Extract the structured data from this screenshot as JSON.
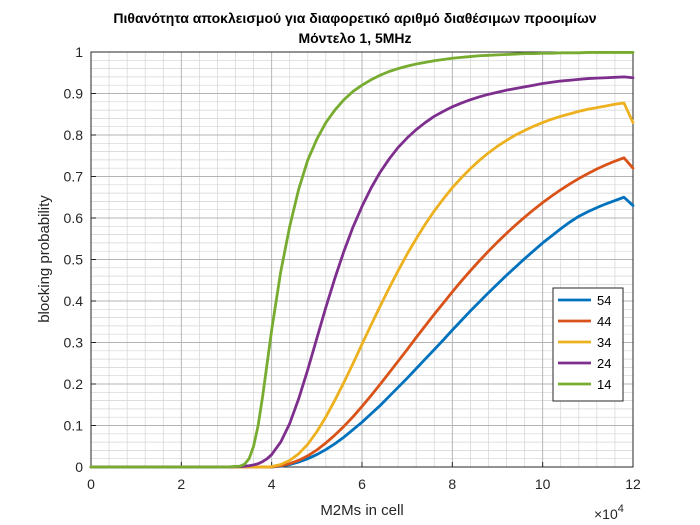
{
  "chart_data": {
    "type": "line",
    "title": "Πιθανότητα αποκλεισμού για διαφορετικό αριθμό διαθέσιμων προοιμίων",
    "subtitle": "Μόντελο 1, 5MHz",
    "xlabel": "M2Ms in cell",
    "ylabel": "blocking probability",
    "x_multiplier_label": "×10",
    "x_multiplier_exponent": "4",
    "xlim": [
      0,
      120000
    ],
    "ylim": [
      0,
      1
    ],
    "xticks": [
      0,
      20000,
      40000,
      60000,
      80000,
      100000,
      120000
    ],
    "xtick_labels": [
      "0",
      "2",
      "4",
      "6",
      "8",
      "10",
      "12"
    ],
    "yticks": [
      0,
      0.1,
      0.2,
      0.3,
      0.4,
      0.5,
      0.6,
      0.7,
      0.8,
      0.9,
      1
    ],
    "ytick_labels": [
      "0",
      "0.1",
      "0.2",
      "0.3",
      "0.4",
      "0.5",
      "0.6",
      "0.7",
      "0.8",
      "0.9",
      "1"
    ],
    "grid": true,
    "minor_grid": true,
    "legend_position": "bottom-right",
    "x": [
      0,
      30000,
      33000,
      34000,
      35000,
      36000,
      37000,
      38000,
      39000,
      40000,
      42000,
      44000,
      46000,
      48000,
      50000,
      52000,
      54000,
      56000,
      58000,
      60000,
      62000,
      64000,
      66000,
      68000,
      70000,
      72000,
      74000,
      76000,
      78000,
      80000,
      82000,
      84000,
      86000,
      88000,
      90000,
      92000,
      94000,
      96000,
      98000,
      100000,
      102000,
      104000,
      106000,
      108000,
      110000,
      112000,
      114000,
      116000,
      118000,
      120000
    ],
    "series": [
      {
        "name": "54",
        "color": "#0072BD",
        "values": [
          0,
          0,
          0,
          0,
          0,
          0,
          0,
          0,
          0,
          0,
          0.002,
          0.006,
          0.012,
          0.02,
          0.03,
          0.042,
          0.056,
          0.072,
          0.09,
          0.108,
          0.128,
          0.148,
          0.17,
          0.192,
          0.214,
          0.237,
          0.26,
          0.283,
          0.306,
          0.33,
          0.353,
          0.376,
          0.398,
          0.42,
          0.441,
          0.462,
          0.482,
          0.502,
          0.521,
          0.54,
          0.557,
          0.574,
          0.59,
          0.604,
          0.615,
          0.625,
          0.634,
          0.642,
          0.65,
          0.63
        ]
      },
      {
        "name": "44",
        "color": "#D95319",
        "values": [
          0,
          0,
          0,
          0,
          0,
          0,
          0,
          0,
          0,
          0,
          0.003,
          0.008,
          0.016,
          0.027,
          0.041,
          0.058,
          0.077,
          0.098,
          0.121,
          0.146,
          0.172,
          0.199,
          0.227,
          0.255,
          0.283,
          0.312,
          0.34,
          0.368,
          0.395,
          0.422,
          0.448,
          0.473,
          0.497,
          0.52,
          0.542,
          0.563,
          0.583,
          0.602,
          0.62,
          0.637,
          0.653,
          0.668,
          0.682,
          0.695,
          0.707,
          0.718,
          0.728,
          0.737,
          0.745,
          0.72
        ]
      },
      {
        "name": "34",
        "color": "#EDB120",
        "values": [
          0,
          0,
          0,
          0,
          0,
          0,
          0,
          0,
          0,
          0.001,
          0.006,
          0.016,
          0.032,
          0.055,
          0.085,
          0.121,
          0.161,
          0.204,
          0.249,
          0.296,
          0.342,
          0.387,
          0.431,
          0.473,
          0.513,
          0.55,
          0.585,
          0.617,
          0.646,
          0.673,
          0.697,
          0.719,
          0.739,
          0.757,
          0.773,
          0.787,
          0.8,
          0.811,
          0.821,
          0.83,
          0.838,
          0.845,
          0.851,
          0.857,
          0.862,
          0.866,
          0.87,
          0.874,
          0.877,
          0.83
        ]
      },
      {
        "name": "24",
        "color": "#7E2F8E",
        "values": [
          0,
          0,
          0.001,
          0.002,
          0.003,
          0.005,
          0.008,
          0.013,
          0.02,
          0.03,
          0.06,
          0.105,
          0.165,
          0.235,
          0.31,
          0.385,
          0.455,
          0.52,
          0.578,
          0.628,
          0.672,
          0.71,
          0.742,
          0.77,
          0.793,
          0.813,
          0.83,
          0.845,
          0.857,
          0.868,
          0.877,
          0.885,
          0.892,
          0.898,
          0.903,
          0.908,
          0.912,
          0.916,
          0.92,
          0.924,
          0.927,
          0.93,
          0.932,
          0.934,
          0.936,
          0.937,
          0.938,
          0.939,
          0.94,
          0.938
        ]
      },
      {
        "name": "14",
        "color": "#77AC30",
        "values": [
          0,
          0,
          0.002,
          0.007,
          0.02,
          0.05,
          0.1,
          0.17,
          0.25,
          0.33,
          0.47,
          0.58,
          0.67,
          0.74,
          0.79,
          0.83,
          0.86,
          0.885,
          0.905,
          0.92,
          0.933,
          0.944,
          0.953,
          0.96,
          0.966,
          0.971,
          0.975,
          0.979,
          0.982,
          0.985,
          0.987,
          0.989,
          0.991,
          0.992,
          0.993,
          0.994,
          0.995,
          0.996,
          0.996,
          0.997,
          0.997,
          0.998,
          0.998,
          0.998,
          0.999,
          0.999,
          0.999,
          0.999,
          0.999,
          0.999
        ]
      }
    ]
  }
}
